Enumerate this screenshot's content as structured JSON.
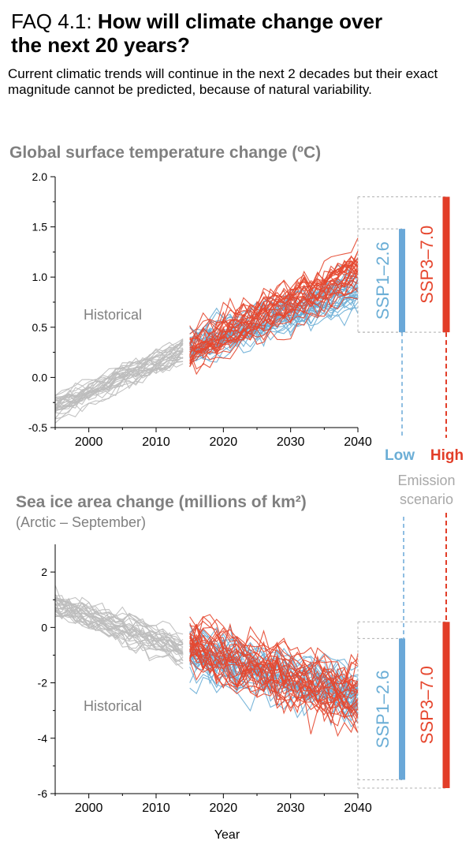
{
  "header": {
    "tag": "FAQ 4.1:",
    "question_line1": "How will climate change over",
    "question_line2": "the next 20 years?",
    "subtitle": "Current climatic trends will continue in the next 2 decades but their exact magnitude cannot be predicted, because of natural variability."
  },
  "colors": {
    "historical": "#bdbdbd",
    "low": "#6baed6",
    "high": "#e6472f",
    "low_bar": "#6aa8d8",
    "high_bar": "#e23d28",
    "title_gray": "#808080"
  },
  "legend": {
    "low": "Low",
    "high": "High",
    "emission": "Emission",
    "scenario": "scenario"
  },
  "chart_data": [
    {
      "type": "line",
      "title": "Global surface temperature change (ºC)",
      "subtitle": "",
      "xlabel": "",
      "ylabel": "",
      "xlim": [
        1995,
        2040
      ],
      "ylim": [
        -0.5,
        2.0
      ],
      "xticks": [
        "2000",
        "2010",
        "2020",
        "2030",
        "2040"
      ],
      "yticks": [
        "2.0",
        "1.5",
        "1.0",
        "0.5",
        "0.0",
        "-0.5"
      ],
      "annotation": "Historical",
      "ensemble_members": 30,
      "series": [
        {
          "name": "Historical",
          "x_range": [
            1995,
            2014
          ],
          "start_mean": -0.3,
          "end_mean": 0.25,
          "spread": 0.35
        },
        {
          "name": "SSP1-2.6",
          "x_range": [
            2015,
            2040
          ],
          "start_mean": 0.3,
          "end_mean": 0.9,
          "spread": 0.6
        },
        {
          "name": "SSP3-7.0",
          "x_range": [
            2015,
            2040
          ],
          "start_mean": 0.3,
          "end_mean": 1.1,
          "spread": 0.7
        }
      ],
      "scenario_ranges": [
        {
          "label": "SSP1–2.6",
          "low": 0.45,
          "high": 1.48
        },
        {
          "label": "SSP3–7.0",
          "low": 0.45,
          "high": 1.8
        }
      ]
    },
    {
      "type": "line",
      "title": "Sea ice area change (millions of km²)",
      "subtitle": "(Arctic – September)",
      "xlabel": "Year",
      "ylabel": "",
      "xlim": [
        1995,
        2040
      ],
      "ylim": [
        -6,
        3
      ],
      "xticks": [
        "2000",
        "2010",
        "2020",
        "2030",
        "2040"
      ],
      "yticks": [
        "2",
        "0",
        "-2",
        "-4",
        "-6"
      ],
      "annotation": "Historical",
      "ensemble_members": 30,
      "series": [
        {
          "name": "Historical",
          "x_range": [
            1995,
            2014
          ],
          "start_mean": 0.8,
          "end_mean": -0.8,
          "spread": 1.6
        },
        {
          "name": "SSP1-2.6",
          "x_range": [
            2015,
            2040
          ],
          "start_mean": -0.8,
          "end_mean": -2.5,
          "spread": 3.2
        },
        {
          "name": "SSP3-7.0",
          "x_range": [
            2015,
            2040
          ],
          "start_mean": -0.8,
          "end_mean": -2.8,
          "spread": 3.8
        }
      ],
      "scenario_ranges": [
        {
          "label": "SSP1–2.6",
          "low": -5.5,
          "high": -0.4
        },
        {
          "label": "SSP3–7.0",
          "low": -5.8,
          "high": 0.2
        }
      ]
    }
  ]
}
